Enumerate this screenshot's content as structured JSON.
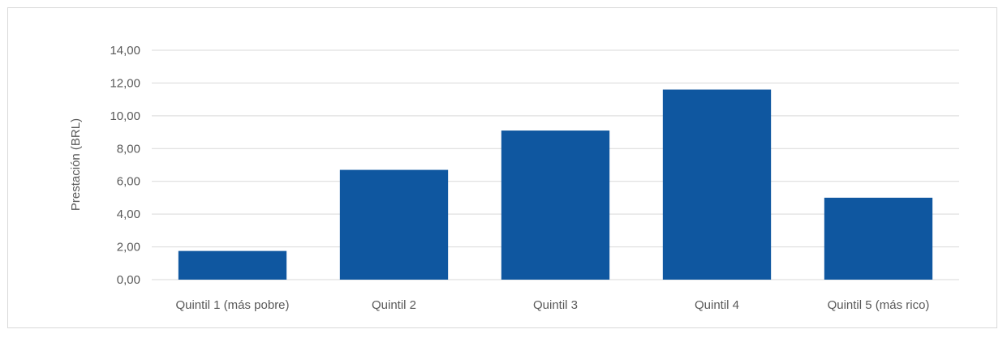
{
  "chart_data": {
    "type": "bar",
    "categories": [
      "Quintil 1 (más pobre)",
      "Quintil 2",
      "Quintil 3",
      "Quintil 4",
      "Quintil 5 (más rico)"
    ],
    "values": [
      1.75,
      6.7,
      9.1,
      11.6,
      5.0
    ],
    "title": "",
    "xlabel": "",
    "ylabel": "Prestación (BRL)",
    "ylim": [
      0,
      14
    ],
    "yticks": [
      0,
      2,
      4,
      6,
      8,
      10,
      12,
      14
    ],
    "ytick_labels": [
      "0,00",
      "2,00",
      "4,00",
      "6,00",
      "8,00",
      "10,00",
      "12,00",
      "14,00"
    ],
    "grid": true,
    "legend": "none",
    "bar_color": "#0f57a0",
    "grid_color": "#d9d9d9"
  }
}
